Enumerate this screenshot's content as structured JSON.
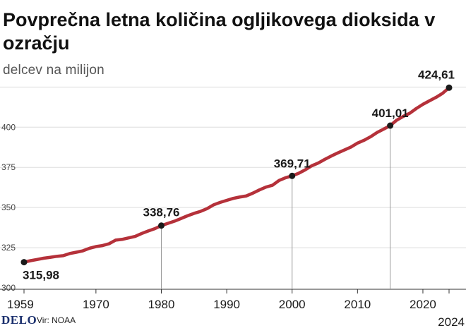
{
  "header": {
    "title": "Povprečna letna količina ogljikovega dioksida v ozračju",
    "unit": "delcev na milijon"
  },
  "footer": {
    "logo": "DELO",
    "source": "Vir: NOAA"
  },
  "colors": {
    "line": "#b5313a",
    "marker": "#1a1a1a",
    "grid": "#dddddd",
    "guide": "#999999",
    "text": "#1a1a1a"
  },
  "chart_data": {
    "type": "line",
    "title": "Povprečna letna količina ogljikovega dioksida v ozračju",
    "ylabel": "delcev na milijon",
    "xlabel": "",
    "xlim": [
      1959,
      2024
    ],
    "ylim": [
      300,
      430
    ],
    "x_ticks": [
      "1959",
      "1970",
      "1980",
      "1990",
      "2000",
      "2010",
      "2020",
      "2024"
    ],
    "y_ticks": [
      "300",
      "325",
      "350",
      "375",
      "400"
    ],
    "grid": true,
    "series": [
      {
        "x": [
          1959,
          1960,
          1961,
          1962,
          1963,
          1964,
          1965,
          1966,
          1967,
          1968,
          1969,
          1970,
          1971,
          1972,
          1973,
          1974,
          1975,
          1976,
          1977,
          1978,
          1979,
          1980,
          1981,
          1982,
          1983,
          1984,
          1985,
          1986,
          1987,
          1988,
          1989,
          1990,
          1991,
          1992,
          1993,
          1994,
          1995,
          1996,
          1997,
          1998,
          1999,
          2000,
          2001,
          2002,
          2003,
          2004,
          2005,
          2006,
          2007,
          2008,
          2009,
          2010,
          2011,
          2012,
          2013,
          2014,
          2015,
          2016,
          2017,
          2018,
          2019,
          2020,
          2021,
          2022,
          2023,
          2024
        ],
        "values": [
          315.98,
          316.91,
          317.64,
          318.45,
          318.99,
          319.62,
          320.04,
          321.37,
          322.18,
          323.05,
          324.62,
          325.68,
          326.32,
          327.46,
          329.68,
          330.19,
          331.12,
          332.03,
          333.84,
          335.41,
          336.84,
          338.76,
          340.12,
          341.48,
          343.15,
          344.85,
          346.35,
          347.61,
          349.31,
          351.69,
          353.2,
          354.45,
          355.7,
          356.54,
          357.21,
          358.96,
          360.97,
          362.74,
          363.88,
          366.84,
          368.54,
          369.71,
          371.32,
          373.45,
          375.98,
          377.7,
          379.98,
          382.09,
          384.02,
          385.83,
          387.64,
          390.1,
          391.85,
          394.06,
          396.74,
          398.81,
          401.01,
          404.41,
          406.76,
          408.72,
          411.66,
          414.24,
          416.45,
          418.56,
          421.08,
          424.61
        ]
      }
    ],
    "annotations": [
      {
        "x": 1959,
        "value": 315.98,
        "label": "315,98"
      },
      {
        "x": 1980,
        "value": 338.76,
        "label": "338,76"
      },
      {
        "x": 2000,
        "value": 369.71,
        "label": "369,71"
      },
      {
        "x": 2015,
        "value": 401.01,
        "label": "401,01"
      },
      {
        "x": 2024,
        "value": 424.61,
        "label": "424,61"
      }
    ]
  }
}
